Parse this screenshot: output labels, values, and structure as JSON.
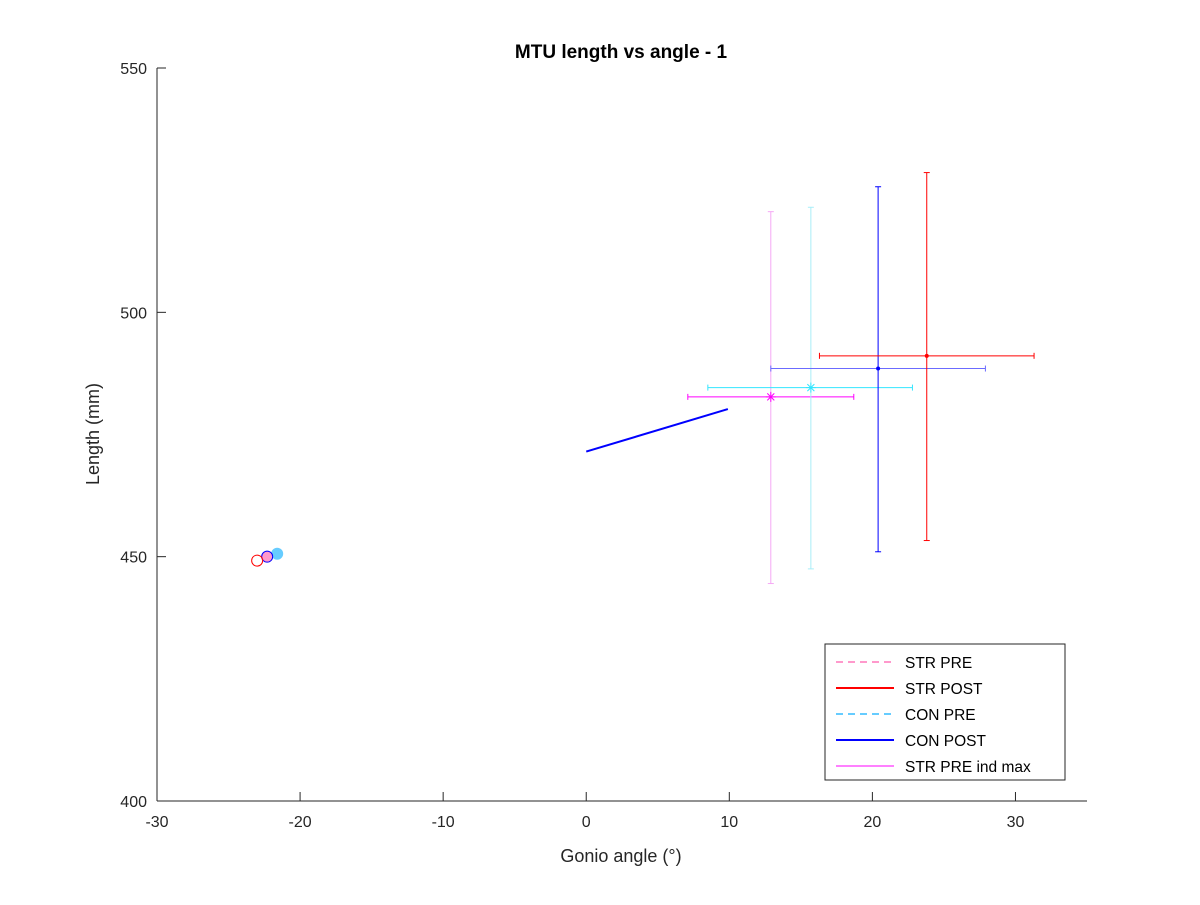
{
  "chart_data": {
    "type": "scatter",
    "title": "MTU length vs angle - 1",
    "xlabel": "Gonio angle (°)",
    "ylabel": "Length (mm)",
    "xlim": [
      -30,
      35
    ],
    "ylim": [
      400,
      550
    ],
    "xticks": [
      -30,
      -20,
      -10,
      0,
      10,
      20,
      30
    ],
    "yticks": [
      400,
      450,
      500,
      550
    ],
    "grid": false,
    "legend_position": "bottom-right",
    "colors": {
      "str_pre": "#ff99cc",
      "str_post": "#ff0000",
      "con_pre": "#66ccff",
      "con_post": "#0000ff",
      "str_pre_ind_max": "#ff00ff",
      "str_pre_ind_max_light": "#f5a8f5",
      "con_pre_cyan": "#33e6ff",
      "con_pre_cyan_light": "#a8eef8",
      "con_post_light": "#6b6bff"
    },
    "legend": [
      {
        "label": "STR PRE",
        "color": "#ff99cc",
        "dash": "dashed"
      },
      {
        "label": "STR POST",
        "color": "#ff0000",
        "dash": "solid"
      },
      {
        "label": "CON PRE",
        "color": "#66ccff",
        "dash": "dashed"
      },
      {
        "label": "CON POST",
        "color": "#0000ff",
        "dash": "solid"
      },
      {
        "label": "STR PRE ind max",
        "color": "#ff00ff",
        "dash": "solid"
      }
    ],
    "series": [
      {
        "key": "con_post_line",
        "color": "#0000ff",
        "x": [
          0,
          9.9
        ],
        "y": [
          471.5,
          480.2
        ]
      }
    ],
    "start_markers": [
      {
        "key": "con_pre_start",
        "x": -21.6,
        "y": 450.6,
        "color": "#66ccff",
        "filled": true
      },
      {
        "key": "con_post_start",
        "x": -22.3,
        "y": 450.0,
        "color": "#0000ff",
        "filled": false,
        "fill": "#ff99cc"
      },
      {
        "key": "str_post_start",
        "x": -23.0,
        "y": 449.2,
        "color": "#ff0000",
        "filled": false
      }
    ],
    "error_points": [
      {
        "key": "str_pre_ind_max",
        "x": 12.9,
        "y": 482.7,
        "xneg": 5.8,
        "xpos": 5.8,
        "yneg": 38.2,
        "ypos": 37.9,
        "hcolor": "#ff00ff",
        "vcolor": "#f5a8f5",
        "marker": "asterisk"
      },
      {
        "key": "con_pre_max",
        "x": 15.7,
        "y": 484.6,
        "xneg": 7.2,
        "xpos": 7.1,
        "yneg": 37.1,
        "ypos": 36.9,
        "hcolor": "#33e6ff",
        "vcolor": "#a8eef8",
        "marker": "asterisk"
      },
      {
        "key": "con_post_max",
        "x": 20.4,
        "y": 488.5,
        "xneg": 7.5,
        "xpos": 7.5,
        "yneg": 37.5,
        "ypos": 37.2,
        "hcolor": "#6b6bff",
        "vcolor": "#0000ff",
        "marker": "dot"
      },
      {
        "key": "str_post_max",
        "x": 23.8,
        "y": 491.1,
        "xneg": 7.5,
        "xpos": 7.5,
        "yneg": 37.8,
        "ypos": 37.5,
        "hcolor": "#ff0000",
        "vcolor": "#ff0000",
        "marker": "dot"
      }
    ]
  }
}
